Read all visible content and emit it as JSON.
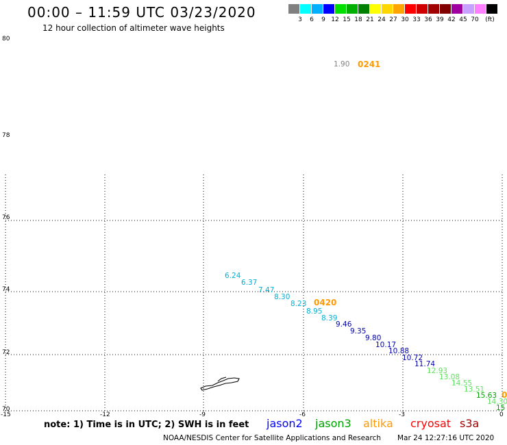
{
  "header": {
    "title": "00:00 – 11:59 UTC 03/23/2020",
    "subtitle": "12 hour collection of altimeter wave heights"
  },
  "legend": {
    "unit": "(ft)",
    "items": [
      {
        "label": "",
        "color": "#808080"
      },
      {
        "label": "3",
        "color": "#00ffff"
      },
      {
        "label": "6",
        "color": "#00b0ff"
      },
      {
        "label": "9",
        "color": "#0000ff"
      },
      {
        "label": "12",
        "color": "#00e000"
      },
      {
        "label": "15",
        "color": "#00b000"
      },
      {
        "label": "18",
        "color": "#008000"
      },
      {
        "label": "21",
        "color": "#ffff00"
      },
      {
        "label": "24",
        "color": "#ffd700"
      },
      {
        "label": "27",
        "color": "#ffa500"
      },
      {
        "label": "30",
        "color": "#ff0000"
      },
      {
        "label": "33",
        "color": "#d00000"
      },
      {
        "label": "36",
        "color": "#a00000"
      },
      {
        "label": "39",
        "color": "#800000"
      },
      {
        "label": "42",
        "color": "#a000a0"
      },
      {
        "label": "45",
        "color": "#c8a0ff"
      },
      {
        "label": "70",
        "color": "#ff80ff"
      },
      {
        "label": "",
        "color": "#000000"
      }
    ]
  },
  "map": {
    "lat_ticks": [
      "80",
      "78",
      "76",
      "74",
      "72",
      "70"
    ],
    "lon_ticks": [
      "-15",
      "-12",
      "-9",
      "-6",
      "-3",
      "0"
    ],
    "readings": [
      {
        "text": "1.90",
        "color": "#808080"
      },
      {
        "text": "6.24",
        "color": "#00b0d8"
      },
      {
        "text": "6.37",
        "color": "#00b0d8"
      },
      {
        "text": "7.47",
        "color": "#00b0d8"
      },
      {
        "text": "8.30",
        "color": "#00b0d8"
      },
      {
        "text": "8.23",
        "color": "#00b0d8"
      },
      {
        "text": "8.95",
        "color": "#00b0d8"
      },
      {
        "text": "8.39",
        "color": "#00b0d8"
      },
      {
        "text": "9.46",
        "color": "#0000b0"
      },
      {
        "text": "9.35",
        "color": "#0000b0"
      },
      {
        "text": "9.80",
        "color": "#0000b0"
      },
      {
        "text": "10.17",
        "color": "#0000b0"
      },
      {
        "text": "10.88",
        "color": "#0000b0"
      },
      {
        "text": "10.72",
        "color": "#0000b0"
      },
      {
        "text": "11.74",
        "color": "#0000b0"
      },
      {
        "text": "12.93",
        "color": "#60e060"
      },
      {
        "text": "13.08",
        "color": "#60e060"
      },
      {
        "text": "14.55",
        "color": "#60e060"
      },
      {
        "text": "13.51",
        "color": "#60e060"
      },
      {
        "text": "15.63",
        "color": "#00a000"
      },
      {
        "text": "14.30",
        "color": "#60e060"
      },
      {
        "text": "15",
        "color": "#00a000"
      }
    ],
    "sat_labels": [
      {
        "text": "0241",
        "color": "#ff9900"
      },
      {
        "text": "0420",
        "color": "#ff9900"
      },
      {
        "text": "0",
        "color": "#ff9900"
      }
    ]
  },
  "footer": {
    "note": "note: 1) Time is in UTC; 2) SWH is in feet",
    "missions": [
      {
        "name": "jason2",
        "color": "#0000ff"
      },
      {
        "name": "jason3",
        "color": "#00a000"
      },
      {
        "name": "altika",
        "color": "#ff9900"
      },
      {
        "name": "cryosat",
        "color": "#ff0000"
      },
      {
        "name": "s3a",
        "color": "#a00000"
      }
    ],
    "credit": "NOAA/NESDIS Center for Satellite Applications and Research",
    "timestamp": "Mar 24 12:27:16 UTC 2020"
  }
}
